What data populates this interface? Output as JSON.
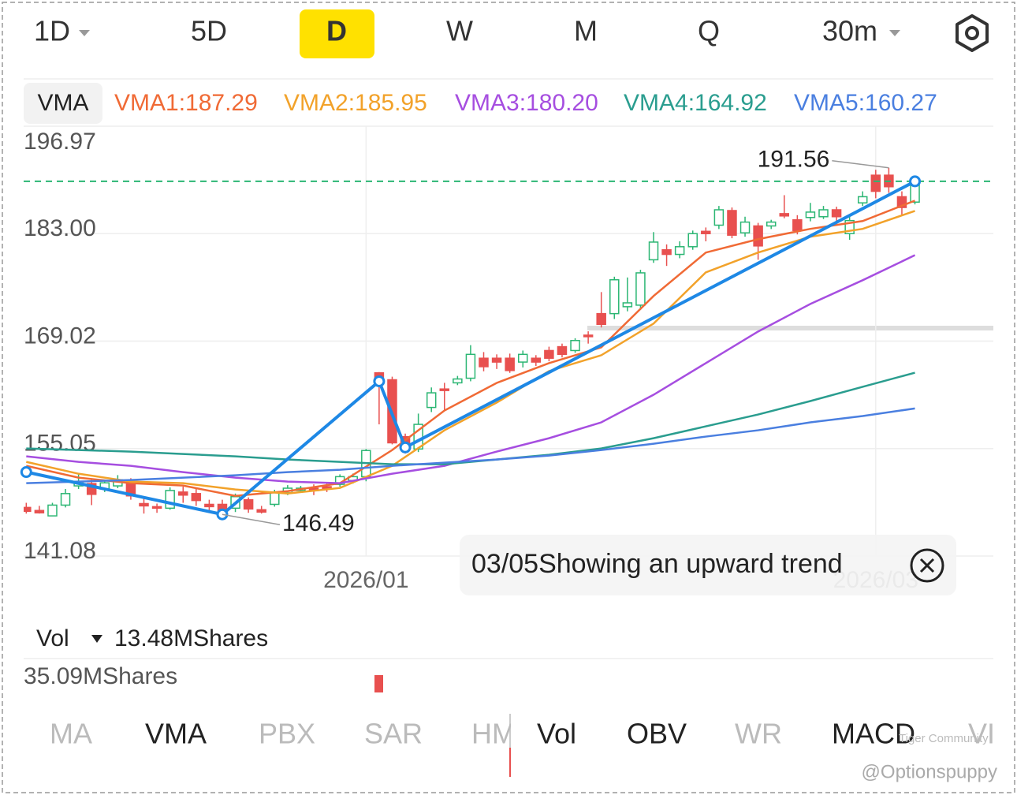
{
  "timeframe_tabs": [
    "1D",
    "5D",
    "D",
    "W",
    "M",
    "Q",
    "30m"
  ],
  "selected_tab": 2,
  "chart_data": {
    "type": "candlestick",
    "indicator": "VMA",
    "ylim": [
      141.08,
      196.97
    ],
    "yticks": [
      141.08,
      155.05,
      169.02,
      {
        "value": 183,
        "label": "183.00"
      },
      196.97
    ],
    "xlim": [
      -0.2,
      74
    ],
    "xticks": [
      {
        "value": 26,
        "label": "2026/01"
      },
      {
        "value": 65,
        "label": "2026/03"
      }
    ],
    "grid": true,
    "up_color": "#2bb673",
    "down_color": "#e8504f",
    "candles": {
      "open": [
        147.4,
        147.0,
        146.3,
        147.7,
        150.2,
        150.5,
        149.8,
        150.2,
        150.6,
        147.9,
        147.5,
        147.3,
        149.4,
        149.2,
        147.8,
        147.8,
        147.3,
        148.4,
        147.1,
        147.8,
        149.3,
        149.6,
        149.9,
        150.1,
        150.4,
        150.9,
        151.4,
        164.9,
        164.0,
        156.6,
        155.0,
        160.4,
        162.8,
        163.6,
        164.2,
        166.8,
        166.8,
        166.8,
        166.3,
        166.8,
        167.8,
        168.3,
        167.8,
        169.8,
        172.6,
        172.6,
        173.5,
        173.7,
        179.6,
        180.9,
        180.3,
        181.3,
        183.3,
        184.1,
        186.0,
        183.1,
        184.0,
        184.0,
        185.6,
        184.8,
        185.1,
        185.2,
        186.1,
        183.0,
        187.0,
        190.6,
        190.6,
        187.8,
        187.1
      ],
      "high": [
        148.0,
        147.6,
        148.0,
        149.8,
        151.8,
        151.0,
        151.0,
        151.6,
        151.2,
        148.7,
        147.9,
        150.0,
        150.1,
        149.8,
        148.4,
        148.4,
        149.2,
        148.7,
        147.6,
        149.7,
        150.3,
        150.2,
        150.4,
        150.6,
        151.7,
        151.8,
        155.0,
        165.0,
        164.4,
        157.0,
        159.6,
        163.0,
        163.6,
        164.5,
        168.5,
        167.6,
        167.3,
        167.4,
        167.8,
        167.2,
        168.3,
        168.7,
        169.4,
        170.3,
        175.4,
        177.4,
        177.3,
        178.3,
        183.2,
        181.6,
        182.0,
        183.4,
        183.8,
        186.6,
        186.4,
        185.2,
        184.4,
        184.8,
        188.0,
        185.4,
        187.0,
        186.6,
        186.5,
        185.4,
        188.5,
        191.3,
        191.56,
        188.5,
        190.0
      ],
      "low": [
        146.6,
        146.6,
        146.6,
        147.4,
        149.8,
        147.7,
        149.4,
        149.9,
        148.4,
        146.6,
        146.7,
        147.1,
        148.0,
        147.6,
        146.9,
        146.49,
        146.8,
        146.7,
        146.6,
        147.5,
        149.0,
        149.3,
        149.0,
        149.4,
        150.1,
        150.5,
        150.8,
        158.2,
        155.6,
        154.4,
        154.6,
        159.8,
        160.0,
        163.3,
        163.8,
        165.1,
        165.4,
        164.9,
        165.6,
        165.8,
        166.4,
        166.9,
        167.5,
        168.7,
        170.8,
        171.9,
        172.9,
        173.1,
        179.2,
        178.8,
        179.8,
        180.9,
        182.0,
        183.6,
        182.4,
        182.6,
        179.6,
        183.6,
        185.0,
        182.9,
        184.6,
        184.9,
        184.3,
        182.2,
        186.6,
        187.6,
        188.3,
        185.3,
        186.8
      ],
      "close": [
        146.9,
        146.7,
        147.7,
        149.2,
        150.8,
        149.1,
        150.6,
        151.0,
        148.9,
        147.6,
        147.3,
        149.6,
        149.0,
        148.3,
        147.5,
        146.7,
        148.8,
        147.2,
        146.8,
        149.3,
        149.9,
        149.9,
        149.6,
        149.8,
        151.4,
        151.4,
        154.8,
        163.7,
        155.8,
        155.0,
        158.2,
        162.3,
        162.6,
        164.1,
        167.3,
        165.7,
        166.3,
        165.2,
        167.3,
        166.3,
        166.8,
        167.3,
        169.1,
        169.6,
        171.2,
        177.0,
        174.0,
        177.9,
        181.9,
        180.3,
        181.3,
        183.0,
        183.0,
        186.1,
        182.8,
        184.5,
        181.4,
        184.5,
        185.3,
        183.4,
        185.8,
        186.1,
        185.2,
        184.7,
        187.8,
        188.5,
        189.1,
        186.4,
        189.8
      ]
    },
    "ma_x": [
      0,
      4,
      8,
      12,
      16,
      20,
      24,
      28,
      32,
      36,
      40,
      44,
      48,
      52,
      56,
      60,
      64,
      68
    ],
    "series": [
      {
        "label": "VMA1:187.29",
        "color": "#f06a35",
        "values": [
          152.81,
          151.27,
          150.55,
          150.24,
          148.9,
          149.52,
          150.55,
          154.86,
          160.0,
          163.59,
          166.16,
          168.21,
          174.89,
          180.54,
          182.28,
          183.62,
          184.64,
          187.29
        ]
      },
      {
        "label": "VMA2:185.95",
        "color": "#f2a22a",
        "values": [
          153.32,
          151.78,
          150.76,
          150.55,
          149.73,
          149.21,
          149.93,
          152.81,
          157.43,
          161.03,
          165.13,
          167.19,
          171.3,
          177.97,
          180.54,
          182.6,
          183.62,
          185.95
        ]
      },
      {
        "label": "VMA3:180.20",
        "color": "#a64ee0",
        "values": [
          154.04,
          153.32,
          152.81,
          151.99,
          151.27,
          150.76,
          150.55,
          151.78,
          152.81,
          154.66,
          156.4,
          158.46,
          162.05,
          166.16,
          170.27,
          173.86,
          176.94,
          180.2
        ]
      },
      {
        "label": "VMA4:164.92",
        "color": "#2a9d8f",
        "values": [
          155.07,
          154.86,
          154.66,
          154.35,
          154.04,
          153.63,
          153.32,
          153.01,
          153.01,
          153.63,
          154.25,
          155.07,
          156.4,
          157.94,
          159.48,
          161.23,
          163.08,
          164.92
        ]
      },
      {
        "label": "VMA5:160.27",
        "color": "#4a7fe0",
        "values": [
          150.55,
          150.76,
          150.96,
          151.27,
          151.58,
          151.99,
          152.3,
          152.81,
          153.22,
          153.63,
          154.14,
          154.86,
          155.68,
          156.61,
          157.43,
          158.46,
          159.28,
          160.27
        ]
      }
    ],
    "trendline": {
      "color": "#1e88e5",
      "x": [
        0,
        15,
        27,
        29,
        68
      ],
      "y": [
        152.0,
        146.49,
        163.8,
        155.2,
        189.8
      ]
    },
    "annotations": [
      {
        "value": 191.56,
        "index": 66
      },
      {
        "value": 146.49,
        "index": 15
      }
    ],
    "tooltip": "03/05Showing an upward trend"
  },
  "volume": {
    "label": "Vol",
    "value_label": "13.48MShares",
    "max_label": "35.09MShares"
  },
  "indicator_tabs": [
    "MA",
    "VMA",
    "PBX",
    "SAR",
    "HM",
    "Vol",
    "OBV",
    "WR",
    "MACD",
    "VI"
  ],
  "active_indicator_tabs": [
    1,
    5,
    6,
    8
  ],
  "watermark": [
    "Tiger Community",
    "@Optionspuppy"
  ]
}
